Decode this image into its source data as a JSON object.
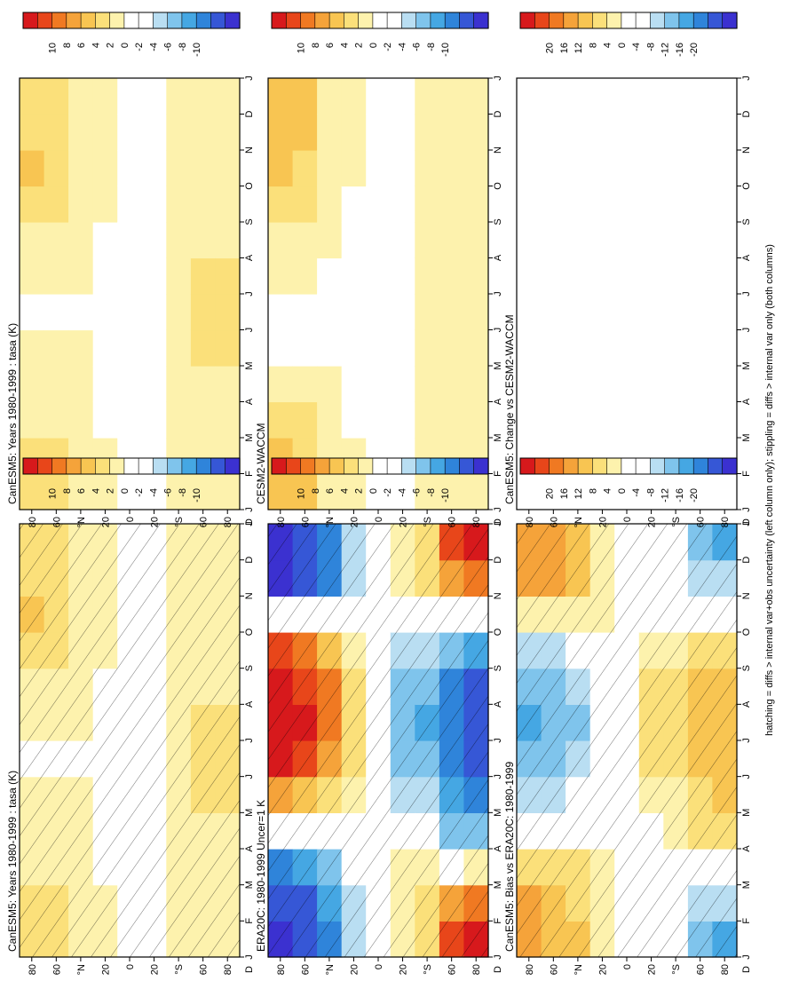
{
  "footer": "hatching = diffs > internal var+obs uncertainty (left column only); stippling = diffs > internal var only (both columns)",
  "colorbars": [
    {
      "labels": [
        "10",
        "8",
        "6",
        "4",
        "2",
        "0",
        "-2",
        "-4",
        "-6",
        "-8",
        "-10"
      ]
    },
    {
      "labels": [
        "10",
        "8",
        "6",
        "4",
        "2",
        "0",
        "-2",
        "-4",
        "-6",
        "-8",
        "-10"
      ]
    },
    {
      "labels": [
        "10",
        "8",
        "6",
        "4",
        "2",
        "0",
        "-2",
        "-4",
        "-6",
        "-8",
        "-10"
      ]
    },
    {
      "labels": [
        "10",
        "8",
        "6",
        "4",
        "2",
        "0",
        "-2",
        "-4",
        "-6",
        "-8",
        "-10"
      ]
    },
    {
      "labels": [
        "20",
        "16",
        "12",
        "8",
        "4",
        "0",
        "-4",
        "-8",
        "-12",
        "-16",
        "-20"
      ]
    },
    {
      "labels": [
        "20",
        "16",
        "12",
        "8",
        "4",
        "0",
        "-4",
        "-8",
        "-12",
        "-16",
        "-20"
      ]
    }
  ],
  "palette": [
    "#d7191c",
    "#e8461a",
    "#f07922",
    "#f5a33a",
    "#f8c552",
    "#fbe07a",
    "#fdf2ad",
    "#ffffff",
    "#ffffff",
    "#b9def2",
    "#7fc4ec",
    "#45a7e3",
    "#2f84da",
    "#3657d6",
    "#3b31d0"
  ],
  "chart_data": [
    {
      "type": "heatmap",
      "title": "CanESM5: Years 1980-1999 : tasa (K)",
      "months": [
        "J",
        "F",
        "M",
        "A",
        "M",
        "J",
        "J",
        "A",
        "S",
        "O",
        "N",
        "D",
        "J"
      ],
      "lat_ticks": [
        "80",
        "60",
        "°N",
        "20",
        "0",
        "20",
        "°S",
        "60",
        "80"
      ],
      "corner_label": "D",
      "clim": [
        -10,
        10
      ],
      "lat_bands": [
        "80N",
        "60N",
        "40N",
        "20N",
        "0",
        "20S",
        "40S",
        "60S",
        "80S"
      ],
      "values": [
        [
          2.5,
          2.5,
          2,
          1.5,
          1,
          0.5,
          0.5,
          1,
          2,
          4,
          3,
          2.5,
          2.5
        ],
        [
          2.5,
          2.5,
          2,
          1.5,
          1,
          0.5,
          0.5,
          1,
          2,
          3.5,
          3,
          2.5,
          2.5
        ],
        [
          1.5,
          1.5,
          1.5,
          1,
          1,
          0.5,
          0.5,
          1,
          1.5,
          2,
          2,
          1.5,
          1.5
        ],
        [
          1,
          1,
          0.5,
          0.5,
          0.5,
          0.5,
          0.5,
          0.5,
          0.5,
          1,
          1,
          1,
          1
        ],
        [
          0.5,
          0.5,
          0.5,
          0.5,
          0.5,
          0.5,
          0.5,
          0.5,
          0.5,
          0.5,
          0.5,
          0.5,
          0.5
        ],
        [
          0.5,
          0.5,
          0.5,
          0.5,
          0.5,
          0.5,
          0.5,
          0.5,
          0.5,
          0.5,
          0.5,
          0.5,
          0.5
        ],
        [
          1,
          1,
          1,
          1,
          1,
          1,
          1,
          1,
          1,
          1,
          1,
          1,
          1
        ],
        [
          1,
          1,
          1,
          1.5,
          2,
          2.5,
          2.5,
          2,
          1.5,
          1,
          1,
          1,
          1
        ],
        [
          1,
          1,
          1,
          1.5,
          2,
          2.5,
          2.5,
          2,
          1.5,
          1,
          1,
          1,
          1
        ]
      ],
      "hatch": true
    },
    {
      "type": "heatmap",
      "title": "CanESM5: Years 1980-1999 : tasa (K)",
      "months": [
        "J",
        "F",
        "M",
        "A",
        "M",
        "J",
        "J",
        "A",
        "S",
        "O",
        "N",
        "D",
        "J"
      ],
      "lat_ticks": [
        "80",
        "60",
        "°N",
        "20",
        "0",
        "20",
        "°S",
        "60",
        "80"
      ],
      "corner_label": "D",
      "clim": [
        -10,
        10
      ],
      "lat_bands": [
        "80N",
        "60N",
        "40N",
        "20N",
        "0",
        "20S",
        "40S",
        "60S",
        "80S"
      ],
      "values": [
        [
          2.5,
          2.5,
          2,
          1.5,
          1,
          0.5,
          0.5,
          1,
          2,
          4,
          3,
          2.5,
          2.5
        ],
        [
          2.5,
          2.5,
          2,
          1.5,
          1,
          0.5,
          0.5,
          1,
          2,
          3.5,
          3,
          2.5,
          2.5
        ],
        [
          1.5,
          1.5,
          1.5,
          1,
          1,
          0.5,
          0.5,
          1,
          1.5,
          2,
          2,
          1.5,
          1.5
        ],
        [
          1,
          1,
          0.5,
          0.5,
          0.5,
          0.5,
          0.5,
          0.5,
          0.5,
          1,
          1,
          1,
          1
        ],
        [
          0.5,
          0.5,
          0.5,
          0.5,
          0.5,
          0.5,
          0.5,
          0.5,
          0.5,
          0.5,
          0.5,
          0.5,
          0.5
        ],
        [
          0.5,
          0.5,
          0.5,
          0.5,
          0.5,
          0.5,
          0.5,
          0.5,
          0.5,
          0.5,
          0.5,
          0.5,
          0.5
        ],
        [
          1,
          1,
          1,
          1,
          1,
          1,
          1,
          1,
          1,
          1,
          1,
          1,
          1
        ],
        [
          1,
          1,
          1,
          1.5,
          2,
          2.5,
          2.5,
          2,
          1.5,
          1,
          1,
          1,
          1
        ],
        [
          1,
          1,
          1,
          1.5,
          2,
          2.5,
          2.5,
          2,
          1.5,
          1,
          1,
          1,
          1
        ]
      ],
      "hatch": false
    },
    {
      "type": "heatmap",
      "title": "ERA20C: 1980-1999 Uncer=1 K",
      "months": [
        "J",
        "F",
        "M",
        "A",
        "M",
        "J",
        "J",
        "A",
        "S",
        "O",
        "N",
        "D",
        "J"
      ],
      "lat_ticks": [
        "80",
        "60",
        "°N",
        "20",
        "0",
        "20",
        "°S",
        "60",
        "80"
      ],
      "corner_label": "D",
      "clim": [
        -10,
        10
      ],
      "lat_bands": [
        "80N",
        "60N",
        "40N",
        "20N",
        "0",
        "20S",
        "40S",
        "60S",
        "80S"
      ],
      "values": [
        [
          -9,
          -9,
          -8,
          -4,
          2,
          8,
          10,
          10,
          9,
          6,
          -8,
          -10,
          -9
        ],
        [
          -8,
          -8,
          -7,
          -4,
          2,
          7,
          9,
          9,
          8,
          5,
          -7,
          -9,
          -8
        ],
        [
          -6,
          -6,
          -5,
          -2,
          1,
          5,
          7,
          7,
          6,
          3,
          -5,
          -7,
          -6
        ],
        [
          -2,
          -2,
          -2,
          -1,
          0.5,
          2,
          3,
          3,
          2,
          1,
          -2,
          -3,
          -2
        ],
        [
          0,
          0,
          0,
          0,
          0,
          0,
          0,
          0,
          0,
          0,
          0,
          0,
          0
        ],
        [
          2,
          2,
          2,
          1,
          -1,
          -3,
          -4,
          -4,
          -3,
          -1,
          1,
          2,
          2
        ],
        [
          3,
          3,
          2,
          1,
          -2,
          -4,
          -5,
          -5,
          -4,
          -2,
          2,
          3,
          3
        ],
        [
          8,
          7,
          3,
          -2,
          -5,
          -6,
          -7,
          -7,
          -6,
          -3,
          3,
          7,
          8
        ],
        [
          10,
          9,
          5,
          -3,
          -6,
          -7,
          -8,
          -8,
          -7,
          -4,
          5,
          9,
          10
        ]
      ],
      "hatch": true
    },
    {
      "type": "heatmap",
      "title": "CESM2-WACCM",
      "months": [
        "J",
        "F",
        "M",
        "A",
        "M",
        "J",
        "J",
        "A",
        "S",
        "O",
        "N",
        "D",
        "J"
      ],
      "lat_ticks": [
        "80",
        "60",
        "°N",
        "20",
        "0",
        "20",
        "°S",
        "60",
        "80"
      ],
      "corner_label": "D",
      "clim": [
        -10,
        10
      ],
      "lat_bands": [
        "80N",
        "60N",
        "40N",
        "20N",
        "0",
        "20S",
        "40S",
        "60S",
        "80S"
      ],
      "values": [
        [
          4,
          4,
          3,
          1.5,
          0.5,
          0.5,
          0.5,
          1,
          2,
          3,
          4,
          4,
          4
        ],
        [
          3.5,
          3.5,
          3,
          1.5,
          0.5,
          0.5,
          0.5,
          1,
          2,
          3,
          3.5,
          3.5,
          3.5
        ],
        [
          2,
          2,
          1.5,
          1,
          0.5,
          0,
          0,
          0.5,
          1,
          1.5,
          2,
          2,
          2
        ],
        [
          1,
          1,
          0.5,
          0.5,
          0,
          0,
          0,
          0,
          0.5,
          0.5,
          1,
          1,
          1
        ],
        [
          0,
          0,
          0,
          0,
          0,
          0,
          0,
          0,
          0,
          0,
          0,
          0,
          0
        ],
        [
          0.5,
          0.5,
          0.5,
          0.5,
          0.5,
          0.5,
          0.5,
          0.5,
          0.5,
          0.5,
          0.5,
          0.5,
          0.5
        ],
        [
          1,
          1,
          1,
          1,
          1,
          1.5,
          1.5,
          1.5,
          1,
          1,
          1,
          1,
          1
        ],
        [
          1,
          1,
          1,
          1,
          1.5,
          2,
          2,
          1.5,
          1,
          1,
          1,
          1,
          1
        ],
        [
          1,
          1,
          1,
          1,
          1,
          1.5,
          1.5,
          1,
          1,
          1,
          1,
          1,
          1
        ]
      ],
      "hatch": false
    },
    {
      "type": "heatmap",
      "title": "CanESM5: Bias vs ERA20C: 1980-1999",
      "months": [
        "J",
        "F",
        "M",
        "A",
        "M",
        "J",
        "J",
        "A",
        "S",
        "O",
        "N",
        "D",
        "J"
      ],
      "lat_ticks": [
        "80",
        "60",
        "°N",
        "20",
        "0",
        "20",
        "°S",
        "60",
        "80"
      ],
      "corner_label": "D",
      "clim": [
        -20,
        20
      ],
      "lat_bands": [
        "80N",
        "60N",
        "40N",
        "20N",
        "0",
        "20S",
        "40S",
        "60S",
        "80S"
      ],
      "values": [
        [
          10,
          10,
          9,
          4,
          -2,
          -8,
          -10,
          -10,
          -8,
          -2,
          10,
          12,
          10
        ],
        [
          9,
          9,
          8,
          4,
          -2,
          -7,
          -9,
          -9,
          -7,
          -2,
          9,
          11,
          9
        ],
        [
          7,
          7,
          6,
          3,
          -1,
          -5,
          -7,
          -7,
          -5,
          -1,
          6,
          8,
          7
        ],
        [
          3,
          3,
          3,
          2,
          0,
          -2,
          -3,
          -3,
          -2,
          0,
          3,
          4,
          3
        ],
        [
          0,
          0,
          0,
          0,
          0,
          0,
          0,
          0,
          0,
          0,
          0,
          0,
          0
        ],
        [
          -2,
          -2,
          -1,
          0,
          2,
          4,
          5,
          5,
          4,
          2,
          -1,
          -2,
          -2
        ],
        [
          -3,
          -3,
          -2,
          0,
          3,
          5,
          6,
          6,
          5,
          3,
          -2,
          -3,
          -3
        ],
        [
          -8,
          -7,
          -2,
          3,
          6,
          7,
          8,
          8,
          7,
          4,
          -3,
          -7,
          -8
        ],
        [
          -10,
          -9,
          -4,
          3,
          7,
          8,
          9,
          9,
          8,
          5,
          -4,
          -9,
          -10
        ]
      ],
      "hatch": true
    },
    {
      "type": "heatmap",
      "title": "CanESM5: Change vs CESM2-WACCM",
      "months": [
        "J",
        "F",
        "M",
        "A",
        "M",
        "J",
        "J",
        "A",
        "S",
        "O",
        "N",
        "D",
        "J"
      ],
      "lat_ticks": [
        "80",
        "60",
        "°N",
        "20",
        "0",
        "20",
        "°S",
        "60",
        "80"
      ],
      "corner_label": "D",
      "clim": [
        -20,
        20
      ],
      "lat_bands": [
        "80N",
        "60N",
        "40N",
        "20N",
        "0",
        "20S",
        "40S",
        "60S",
        "80S"
      ],
      "values": [
        [
          -3,
          -3,
          -3,
          0,
          0,
          0,
          0,
          0,
          0,
          0,
          0,
          -3,
          -3
        ],
        [
          0,
          0,
          0,
          0,
          0,
          0,
          0,
          0,
          0,
          0,
          0,
          0,
          0
        ],
        [
          0,
          0,
          0,
          0,
          0,
          0,
          0,
          0,
          0,
          0,
          0,
          0,
          0
        ],
        [
          0,
          0,
          0,
          0,
          0,
          0,
          0,
          0,
          0,
          0,
          0,
          0,
          0
        ],
        [
          0,
          0,
          0,
          0,
          0,
          0,
          0,
          0,
          0,
          0,
          0,
          0,
          0
        ],
        [
          0,
          0,
          0,
          0,
          0,
          0,
          0,
          0,
          0,
          0,
          0,
          0,
          0
        ],
        [
          0,
          0,
          0,
          0,
          0,
          0,
          0,
          0,
          0,
          0,
          0,
          0,
          0
        ],
        [
          0,
          0,
          0,
          0,
          0,
          0,
          0,
          0,
          0,
          0,
          0,
          0,
          0
        ],
        [
          0,
          0,
          0,
          0,
          0,
          0,
          0,
          0,
          0,
          0,
          0,
          0,
          0
        ]
      ],
      "hatch": false
    }
  ]
}
